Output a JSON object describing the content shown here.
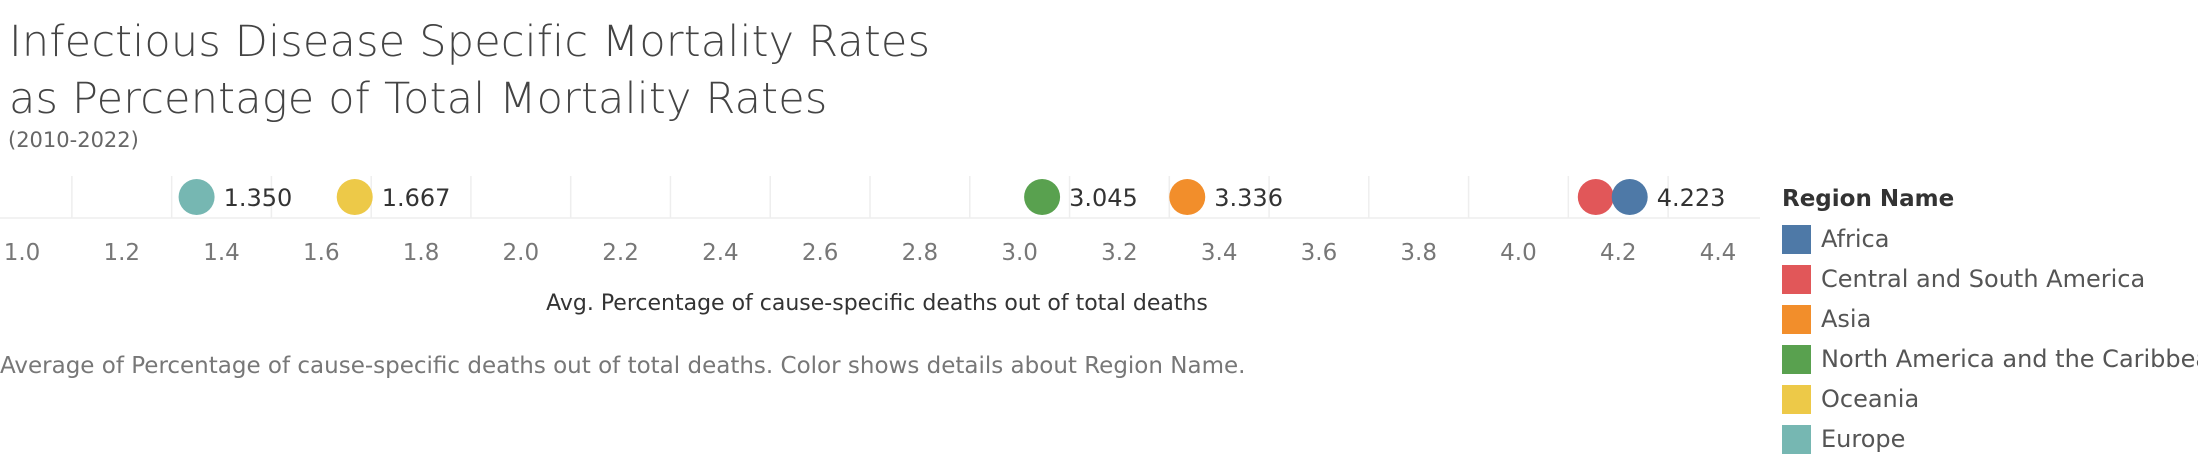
{
  "title_lines": [
    "Infectious Disease Specific Mortality Rates",
    "as Percentage of Total Mortality Rates"
  ],
  "subtitle": "(2010-2022)",
  "caption": "Average of Percentage of cause-specific deaths out of total deaths.  Color shows details about Region Name.",
  "legend": {
    "title": "Region Name",
    "items": [
      {
        "label": "Africa",
        "color": "#4e79a7"
      },
      {
        "label": "Central and South America",
        "color": "#e15759"
      },
      {
        "label": "Asia",
        "color": "#f28e2b"
      },
      {
        "label": "North America and the Caribbean",
        "color": "#59a14f"
      },
      {
        "label": "Oceania",
        "color": "#edc948"
      },
      {
        "label": "Europe",
        "color": "#76b7b2"
      }
    ]
  },
  "chart_data": {
    "type": "scatter",
    "title": "Infectious Disease Specific Mortality Rates as Percentage of Total Mortality Rates",
    "subtitle": "(2010-2022)",
    "xlabel": "Avg. Percentage of cause-specific deaths out of total deaths",
    "xlim": [
      1.0,
      4.4
    ],
    "xticks": [
      "1.0",
      "1.2",
      "1.4",
      "1.6",
      "1.8",
      "2.0",
      "2.2",
      "2.4",
      "2.6",
      "2.8",
      "3.0",
      "3.2",
      "3.4",
      "3.6",
      "3.8",
      "4.0",
      "4.2",
      "4.4"
    ],
    "grid": true,
    "legend_position": "right",
    "points": [
      {
        "region": "Europe",
        "x": 1.35,
        "label": "1.350",
        "color": "#76b7b2"
      },
      {
        "region": "Oceania",
        "x": 1.667,
        "label": "1.667",
        "color": "#edc948"
      },
      {
        "region": "North America and the Caribbean",
        "x": 3.045,
        "label": "3.045",
        "color": "#59a14f"
      },
      {
        "region": "Asia",
        "x": 3.336,
        "label": "3.336",
        "color": "#f28e2b"
      },
      {
        "region": "Central and South America",
        "x": 4.155,
        "label": "",
        "color": "#e15759"
      },
      {
        "region": "Africa",
        "x": 4.223,
        "label": "4.223",
        "color": "#4e79a7"
      }
    ]
  }
}
